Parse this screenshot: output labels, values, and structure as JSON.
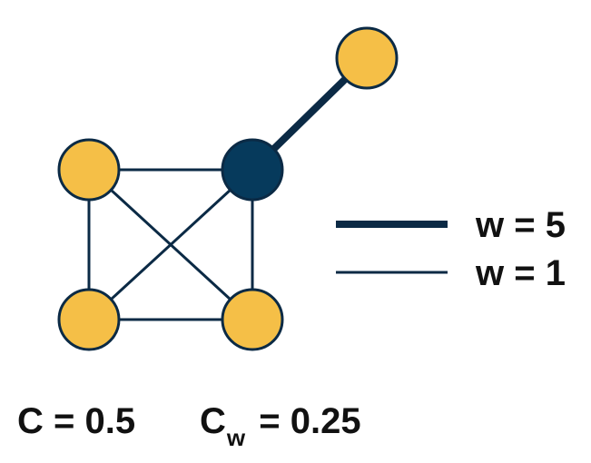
{
  "colors": {
    "edge": "#0b2a45",
    "node_default": "#f5bf47",
    "node_highlight": "#063a5c",
    "node_stroke": "#0b2a45",
    "text": "#111111"
  },
  "graph": {
    "nodes": [
      {
        "id": "top-right",
        "highlighted": false
      },
      {
        "id": "center",
        "highlighted": true
      },
      {
        "id": "upper-left",
        "highlighted": false
      },
      {
        "id": "lower-left",
        "highlighted": false
      },
      {
        "id": "lower-right",
        "highlighted": false
      }
    ],
    "edges": [
      {
        "from": "center",
        "to": "top-right",
        "weight": 5
      },
      {
        "from": "upper-left",
        "to": "center",
        "weight": 1
      },
      {
        "from": "upper-left",
        "to": "lower-left",
        "weight": 1
      },
      {
        "from": "upper-left",
        "to": "lower-right",
        "weight": 1
      },
      {
        "from": "center",
        "to": "lower-left",
        "weight": 1
      },
      {
        "from": "center",
        "to": "lower-right",
        "weight": 1
      },
      {
        "from": "lower-left",
        "to": "lower-right",
        "weight": 1
      }
    ]
  },
  "legend": {
    "heavy_label": "w = 5",
    "light_label": "w = 1"
  },
  "metrics": {
    "clustering_label": "C = 0.5",
    "weighted_symbol": "C",
    "weighted_subscript": "w",
    "weighted_value": " = 0.25"
  }
}
